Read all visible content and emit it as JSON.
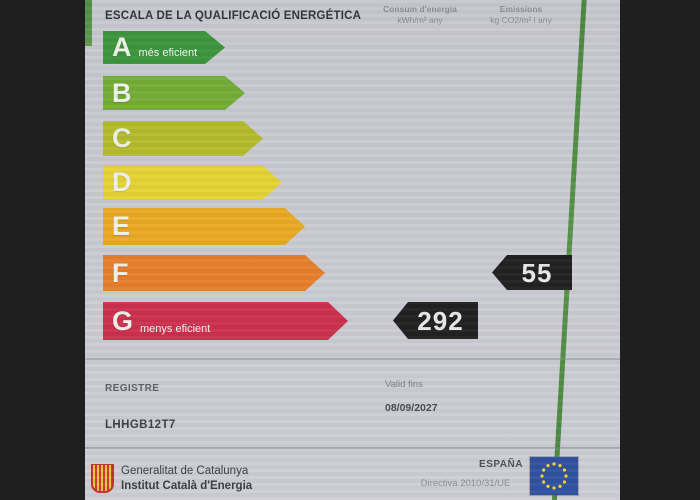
{
  "certificate": {
    "title": "ESCALA DE LA QUALIFICACIÓ ENERGÉTICA",
    "columns": {
      "consum": {
        "line1": "Consum d'energia",
        "line2": "kWh/m² any"
      },
      "emissions": {
        "line1": "Emissions",
        "line2": "kg CO2/m² i any"
      }
    },
    "scale": {
      "rows": [
        {
          "letter": "A",
          "note": "més eficient",
          "color": "#389338"
        },
        {
          "letter": "B",
          "note": "",
          "color": "#72ab31"
        },
        {
          "letter": "C",
          "note": "",
          "color": "#b3ba28"
        },
        {
          "letter": "D",
          "note": "",
          "color": "#e5d231"
        },
        {
          "letter": "E",
          "note": "",
          "color": "#e9a81f"
        },
        {
          "letter": "F",
          "note": "",
          "color": "#e67c27"
        },
        {
          "letter": "G",
          "note": "menys eficient",
          "color": "#cc2d4a"
        }
      ]
    },
    "values": {
      "consum": {
        "value": "292",
        "row": "G"
      },
      "emissions": {
        "value": "55",
        "row": "F"
      }
    },
    "registre": {
      "label": "REGISTRE",
      "code": "LHHGB12T7"
    },
    "validity": {
      "label": "Valid fins",
      "date": "08/09/2027"
    },
    "footer": {
      "gencat_line1": "Generalitat de Catalunya",
      "gencat_line2": "Institut Català d'Energia",
      "espana": "ESPAÑA",
      "directiva": "Directiva 2010/31/UE"
    },
    "icons": {
      "shield": "generalitat-shield-icon",
      "eu_flag": "eu-flag-icon"
    },
    "colors": {
      "marker_black": "#1d1d1d",
      "accent_green": "#4a8a3e",
      "eu_blue": "#2d4e9d",
      "eu_star_yellow": "#f4d32c",
      "paper": "#c8c9d0"
    }
  }
}
